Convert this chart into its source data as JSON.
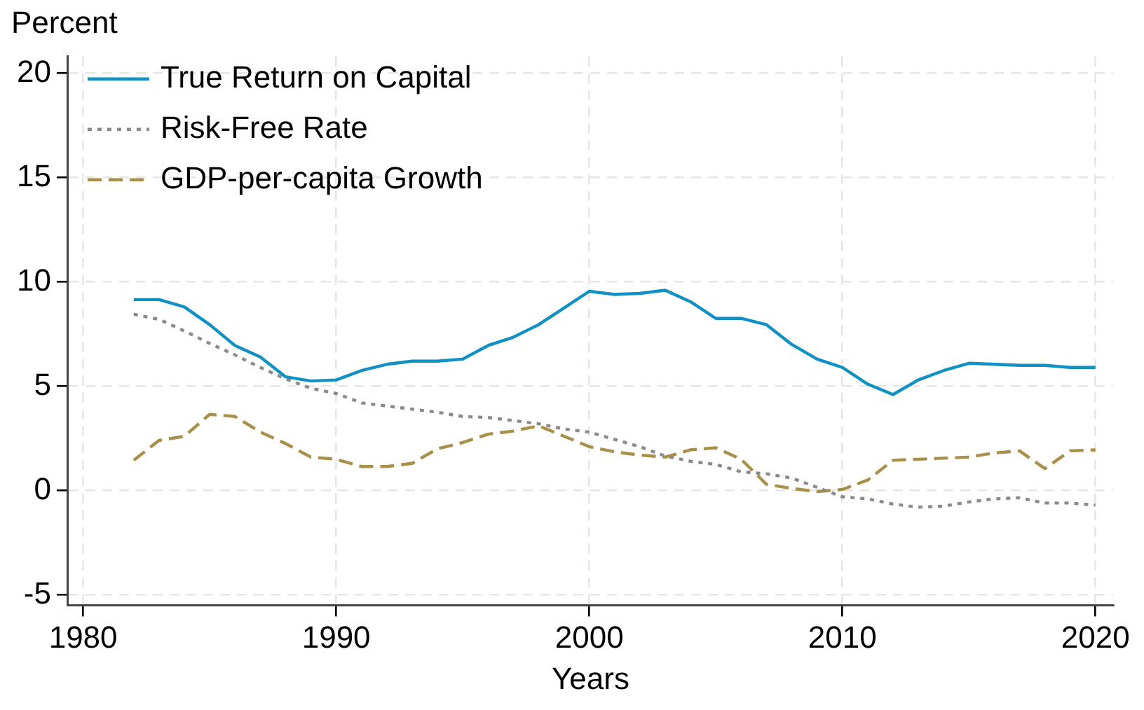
{
  "chart_data": {
    "type": "line",
    "ylabel": "Percent",
    "xlabel": "Years",
    "x": [
      1982,
      1983,
      1984,
      1985,
      1986,
      1987,
      1988,
      1989,
      1990,
      1991,
      1992,
      1993,
      1994,
      1995,
      1996,
      1997,
      1998,
      1999,
      2000,
      2001,
      2002,
      2003,
      2004,
      2005,
      2006,
      2007,
      2008,
      2009,
      2010,
      2011,
      2012,
      2013,
      2014,
      2015,
      2016,
      2017,
      2018,
      2019,
      2020
    ],
    "series": [
      {
        "name": "True Return on Capital",
        "color": "#1190c3",
        "line_style": "solid",
        "values": [
          9.15,
          9.15,
          8.8,
          7.95,
          6.95,
          6.4,
          5.45,
          5.25,
          5.3,
          5.75,
          6.05,
          6.2,
          6.2,
          6.3,
          6.95,
          7.35,
          7.95,
          8.75,
          9.55,
          9.4,
          9.45,
          9.6,
          9.05,
          8.25,
          8.25,
          7.95,
          7.0,
          6.3,
          5.9,
          5.1,
          4.6,
          5.3,
          5.75,
          6.1,
          6.05,
          6.0,
          6.0,
          5.9,
          5.9
        ]
      },
      {
        "name": "Risk-Free Rate",
        "color": "#8a8a8e",
        "line_style": "dotted",
        "values": [
          8.45,
          8.2,
          7.65,
          7.05,
          6.5,
          5.9,
          5.35,
          4.9,
          4.65,
          4.2,
          4.05,
          3.9,
          3.75,
          3.55,
          3.5,
          3.35,
          3.2,
          2.95,
          2.8,
          2.45,
          2.1,
          1.65,
          1.4,
          1.25,
          0.9,
          0.8,
          0.6,
          0.15,
          -0.3,
          -0.4,
          -0.65,
          -0.8,
          -0.75,
          -0.55,
          -0.4,
          -0.35,
          -0.6,
          -0.6,
          -0.7
        ]
      },
      {
        "name": "GDP-per-capita Growth",
        "color": "#a88f4a",
        "line_style": "dashed",
        "values": [
          1.45,
          2.4,
          2.6,
          3.65,
          3.55,
          2.8,
          2.25,
          1.6,
          1.5,
          1.15,
          1.15,
          1.3,
          2.0,
          2.3,
          2.7,
          2.85,
          3.1,
          2.6,
          2.1,
          1.85,
          1.7,
          1.6,
          1.95,
          2.05,
          1.5,
          0.3,
          0.1,
          -0.05,
          0.05,
          0.5,
          1.45,
          1.5,
          1.55,
          1.6,
          1.8,
          1.9,
          1.05,
          1.9,
          1.95
        ]
      }
    ],
    "xlim": [
      1979.4,
      2020.7
    ],
    "xticks": [
      1980,
      1990,
      2000,
      2010,
      2020
    ],
    "ylim": [
      -5.5,
      20.8
    ],
    "yticks": [
      -5,
      0,
      5,
      10,
      15,
      20
    ],
    "grid": true,
    "legend": "top left",
    "marker": "none"
  }
}
